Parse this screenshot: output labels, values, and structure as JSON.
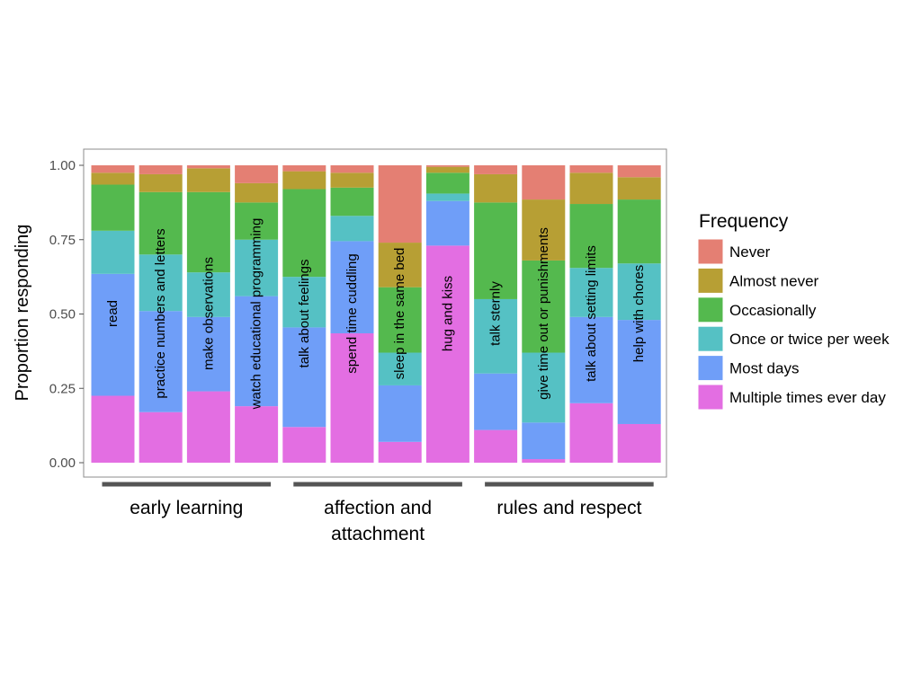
{
  "chart_data": {
    "type": "bar",
    "stacked": true,
    "ylabel": "Proportion responding",
    "xlabel": "",
    "ylim": [
      0,
      1
    ],
    "yticks": [
      "0.00",
      "0.25",
      "0.50",
      "0.75",
      "1.00"
    ],
    "grid": false,
    "legend": {
      "title": "Frequency",
      "placement": "right",
      "order": [
        "never",
        "almost_never",
        "occasionally",
        "once_twice",
        "most_days",
        "multiple"
      ]
    },
    "series": [
      {
        "key": "multiple",
        "name": "Multiple times ever day",
        "color": "#E36EE2",
        "values": [
          0.225,
          0.17,
          0.24,
          0.19,
          0.12,
          0.435,
          0.07,
          0.73,
          0.11,
          0.012,
          0.2,
          0.13
        ]
      },
      {
        "key": "most_days",
        "name": "Most days",
        "color": "#6F9EF8",
        "values": [
          0.41,
          0.34,
          0.25,
          0.37,
          0.335,
          0.31,
          0.19,
          0.15,
          0.19,
          0.123,
          0.29,
          0.35
        ]
      },
      {
        "key": "once_twice",
        "name": "Once or twice per week",
        "color": "#55C1C4",
        "values": [
          0.145,
          0.19,
          0.15,
          0.19,
          0.17,
          0.085,
          0.11,
          0.025,
          0.25,
          0.235,
          0.165,
          0.19
        ]
      },
      {
        "key": "occasionally",
        "name": "Occasionally",
        "color": "#54B94E",
        "values": [
          0.155,
          0.21,
          0.27,
          0.125,
          0.295,
          0.095,
          0.22,
          0.07,
          0.325,
          0.31,
          0.215,
          0.215
        ]
      },
      {
        "key": "almost_never",
        "name": "Almost never",
        "color": "#B79F34",
        "values": [
          0.04,
          0.06,
          0.08,
          0.065,
          0.06,
          0.05,
          0.15,
          0.02,
          0.095,
          0.205,
          0.105,
          0.075
        ]
      },
      {
        "key": "never",
        "name": "Never",
        "color": "#E47F73",
        "values": [
          0.025,
          0.03,
          0.01,
          0.06,
          0.02,
          0.025,
          0.26,
          0.005,
          0.03,
          0.115,
          0.025,
          0.04
        ]
      }
    ],
    "categories": [
      "read",
      "practice numbers and letters",
      "make observations",
      "watch educational programming",
      "talk about feelings",
      "spend time cuddling",
      "sleep in the same bed",
      "hug and kiss",
      "talk sternly",
      "give time out or punishments",
      "talk about setting limits",
      "help with chores"
    ],
    "groups": [
      {
        "lines": [
          "early learning"
        ],
        "count": 4
      },
      {
        "lines": [
          "affection and",
          "attachment"
        ],
        "count": 4
      },
      {
        "lines": [
          "rules and respect"
        ],
        "count": 4
      }
    ]
  }
}
